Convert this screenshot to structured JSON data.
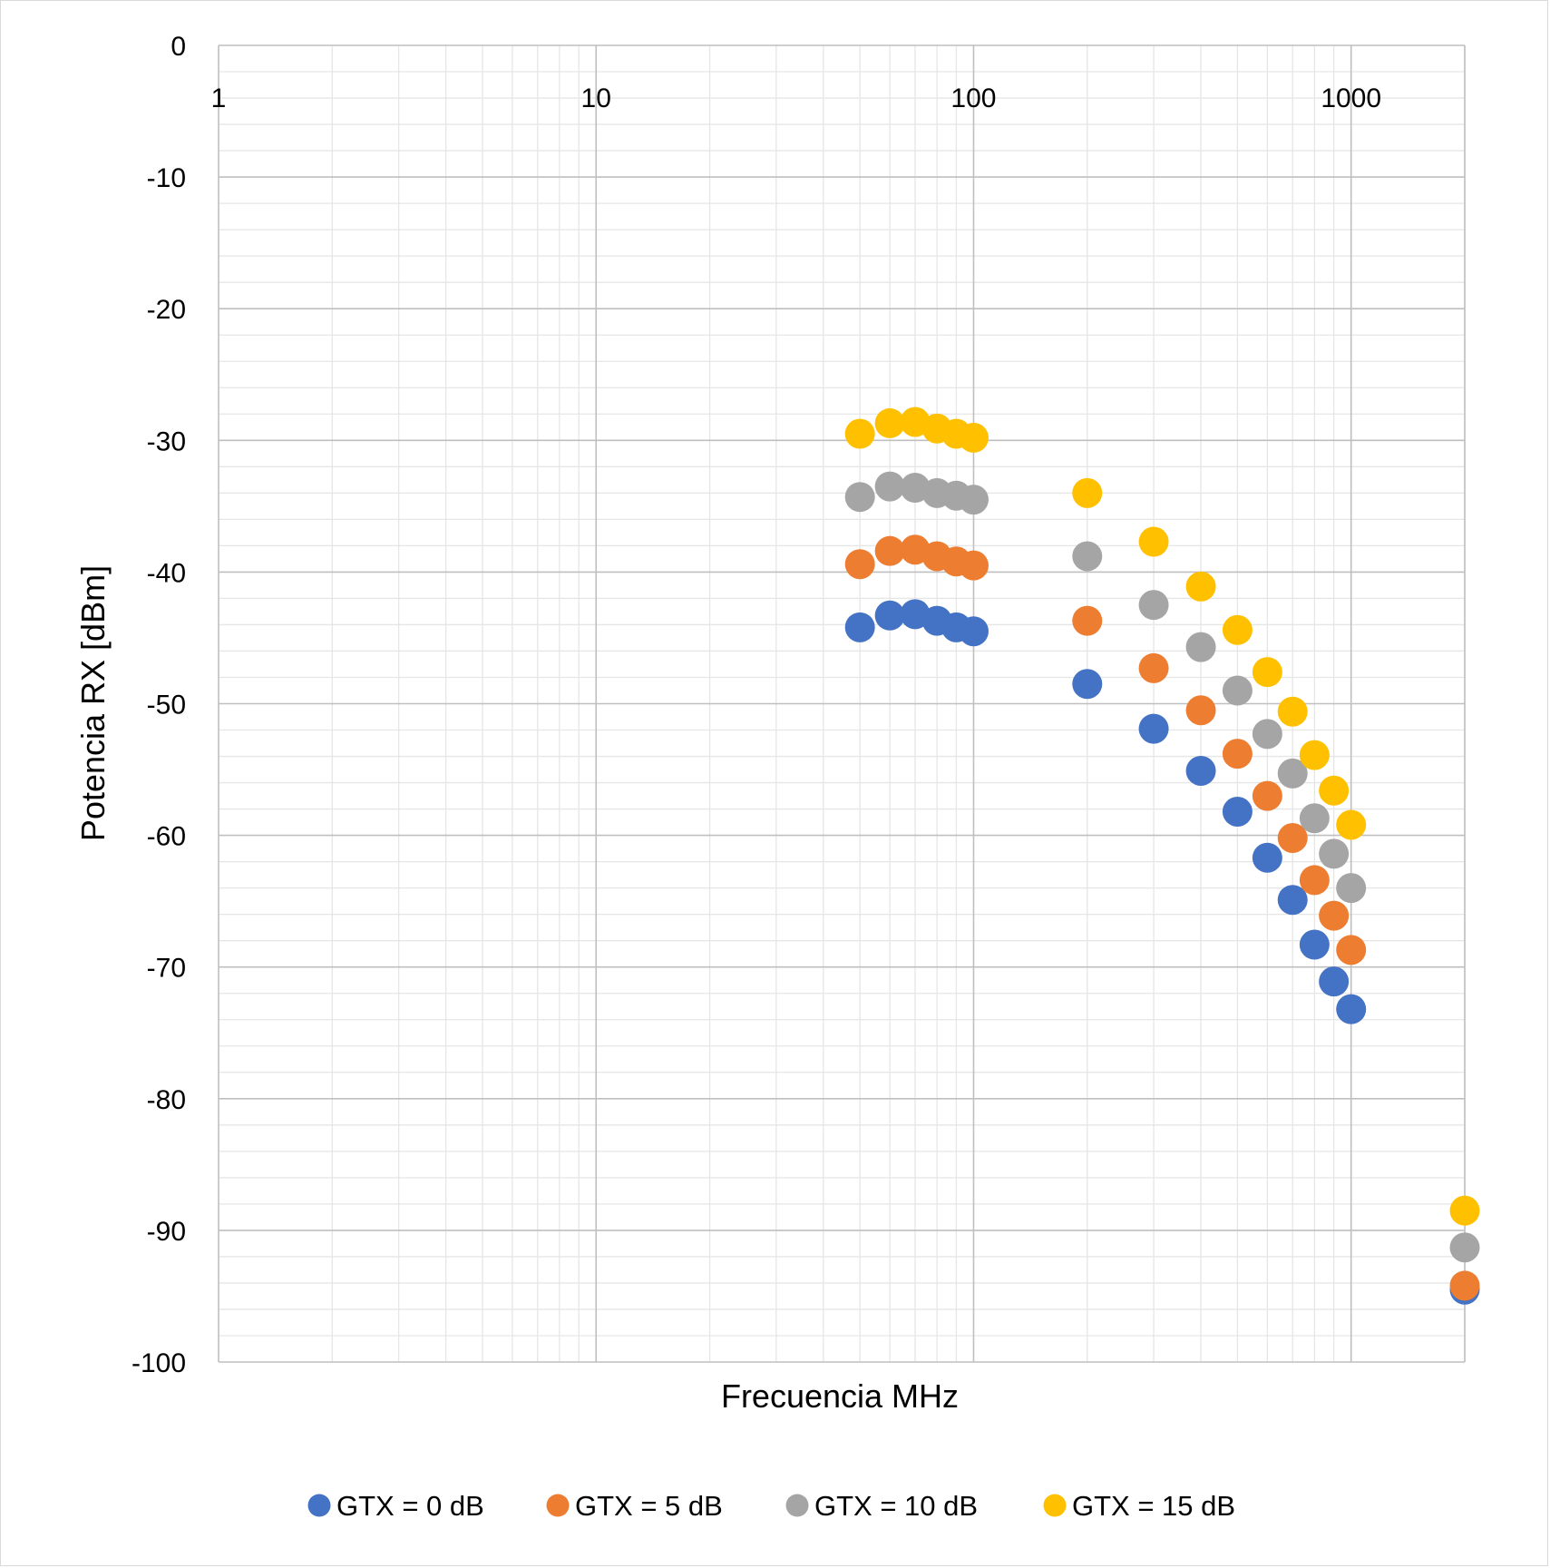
{
  "chart_data": {
    "type": "scatter",
    "title": "",
    "xlabel": "Frecuencia MHz",
    "ylabel": "Potencia RX [dBm]",
    "x_scale": "log",
    "xlim": [
      1,
      2000
    ],
    "ylim": [
      -100,
      0
    ],
    "x_ticks": [
      "1",
      "10",
      "100",
      "1000"
    ],
    "y_ticks": [
      "0",
      "-10",
      "-20",
      "-30",
      "-40",
      "-50",
      "-60",
      "-70",
      "-80",
      "-90",
      "-100"
    ],
    "grid": true,
    "legend_position": "bottom",
    "x": [
      50,
      60,
      70,
      80,
      90,
      100,
      200,
      300,
      400,
      500,
      600,
      700,
      800,
      900,
      1000,
      2000
    ],
    "series": [
      {
        "name": "GTX = 0 dB",
        "color": "#4472c4",
        "values": [
          -44.2,
          -43.3,
          -43.2,
          -43.7,
          -44.2,
          -44.5,
          -48.5,
          -51.9,
          -55.1,
          -58.2,
          -61.7,
          -64.9,
          -68.3,
          -71.1,
          -73.2,
          -94.5
        ]
      },
      {
        "name": "GTX = 5 dB",
        "color": "#ed7d31",
        "values": [
          -39.4,
          -38.4,
          -38.3,
          -38.8,
          -39.2,
          -39.5,
          -43.7,
          -47.3,
          -50.5,
          -53.8,
          -57.0,
          -60.2,
          -63.4,
          -66.1,
          -68.7,
          -94.2
        ]
      },
      {
        "name": "GTX = 10 dB",
        "color": "#a5a5a5",
        "values": [
          -34.3,
          -33.5,
          -33.6,
          -34.0,
          -34.2,
          -34.5,
          -38.8,
          -42.5,
          -45.7,
          -49.0,
          -52.3,
          -55.3,
          -58.7,
          -61.4,
          -64.0,
          -91.3
        ]
      },
      {
        "name": "GTX = 15 dB",
        "color": "#ffc000",
        "values": [
          -29.5,
          -28.7,
          -28.6,
          -29.1,
          -29.5,
          -29.8,
          -34.0,
          -37.7,
          -41.1,
          -44.4,
          -47.6,
          -50.6,
          -53.9,
          -56.6,
          -59.2,
          -88.5
        ]
      }
    ]
  }
}
